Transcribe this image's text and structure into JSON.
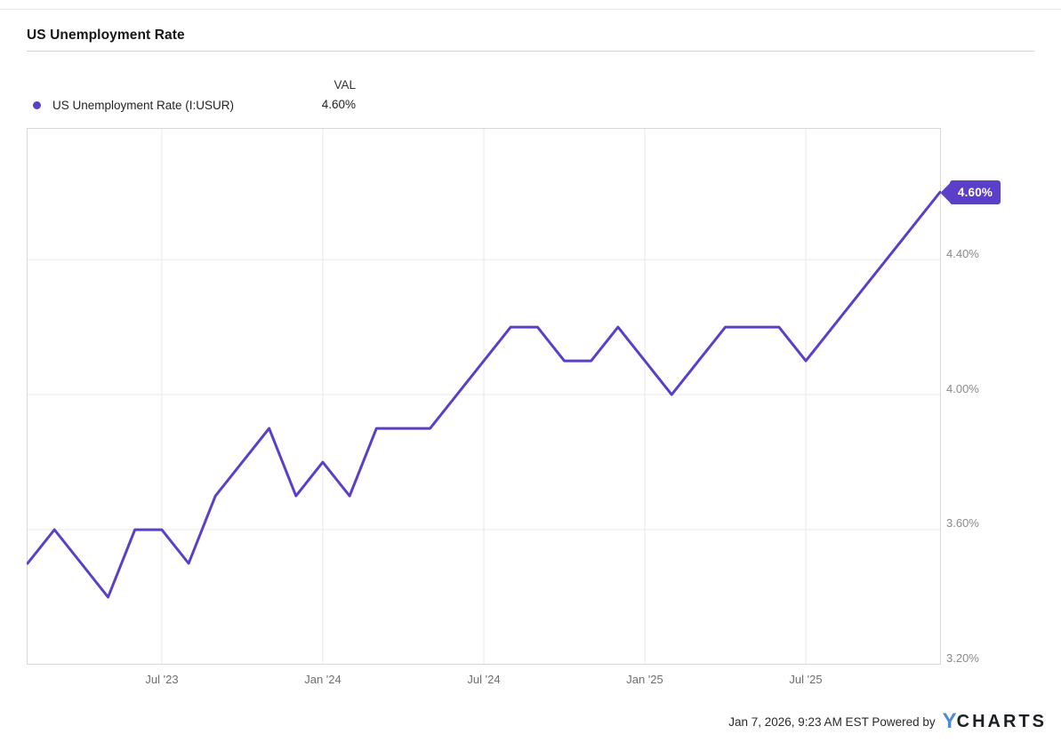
{
  "header": {
    "title": "US Unemployment Rate"
  },
  "legend": {
    "value_header": "VAL",
    "series_label": "US Unemployment Rate (I:USUR)",
    "series_color": "#5b3fc8",
    "current_value": "4.60%"
  },
  "chart_data": {
    "type": "line",
    "title": "US Unemployment Rate",
    "series_name": "US Unemployment Rate (I:USUR)",
    "unit": "%",
    "x_months": [
      "Feb '23",
      "Mar '23",
      "Apr '23",
      "May '23",
      "Jun '23",
      "Jul '23",
      "Aug '23",
      "Sep '23",
      "Oct '23",
      "Nov '23",
      "Dec '23",
      "Jan '24",
      "Feb '24",
      "Mar '24",
      "Apr '24",
      "May '24",
      "Jun '24",
      "Jul '24",
      "Aug '24",
      "Sep '24",
      "Oct '24",
      "Nov '24",
      "Dec '24",
      "Jan '25",
      "Feb '25",
      "Mar '25",
      "Apr '25",
      "May '25",
      "Jun '25",
      "Jul '25",
      "Aug '25",
      "Sep '25",
      "Oct '25",
      "Nov '25",
      "Dec '25"
    ],
    "values": [
      3.5,
      3.6,
      3.5,
      3.4,
      3.6,
      3.6,
      3.5,
      3.7,
      3.8,
      3.9,
      3.7,
      3.8,
      3.7,
      3.9,
      3.9,
      3.9,
      4.0,
      4.1,
      4.2,
      4.2,
      4.1,
      4.1,
      4.2,
      4.1,
      4.0,
      4.1,
      4.2,
      4.2,
      4.2,
      4.1,
      4.2,
      4.3,
      4.4,
      4.5,
      4.6
    ],
    "ylim": [
      3.2,
      4.79
    ],
    "y_gridlines": [
      3.6,
      4.0,
      4.4
    ],
    "y_tick_labels": [
      "4.40%",
      "4.00%",
      "3.60%",
      "3.20%"
    ],
    "x_tick_labels": [
      "Jul '23",
      "Jan '24",
      "Jul '24",
      "Jan '25",
      "Jul '25"
    ],
    "x_tick_month_indices": [
      5,
      11,
      17,
      23,
      29
    ],
    "end_label": "4.60%",
    "line_color": "#5b3fc8",
    "grid_color": "#e9e9e9",
    "border_color": "#d8d8d8",
    "grid": true,
    "legend_position": "top-left"
  },
  "footer": {
    "timestamp": "Jan 7, 2026, 9:23 AM EST",
    "powered_by": "Powered by",
    "logo_y": "Y",
    "logo_charts": "CHARTS"
  }
}
